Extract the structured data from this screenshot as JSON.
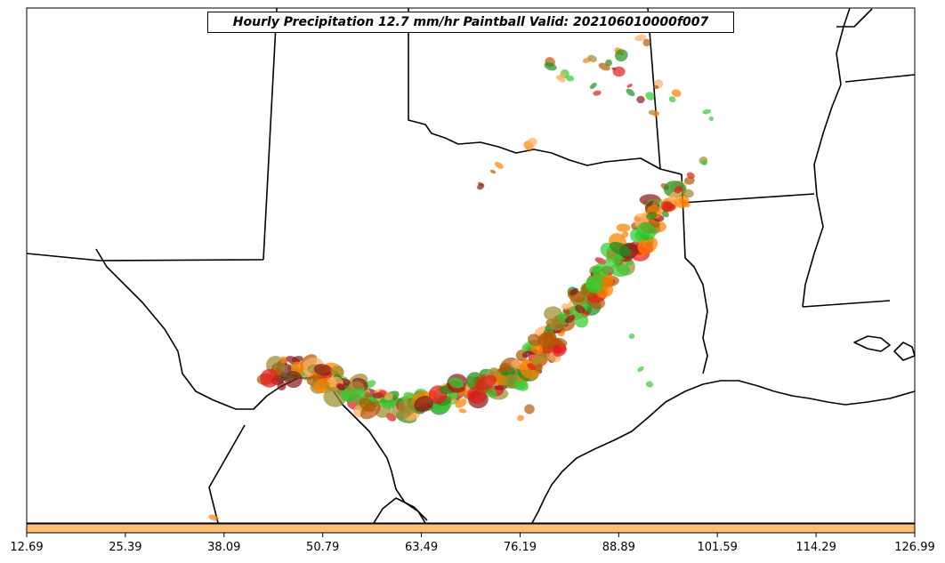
{
  "title": "Hourly Precipitation 12.7 mm/hr Paintball Valid: 202106010000f007",
  "colorbar": {
    "fill_color": "#fdbf6f",
    "ticks": [
      "12.69",
      "25.39",
      "38.09",
      "50.79",
      "63.49",
      "76.19",
      "88.89",
      "101.59",
      "114.29",
      "126.99"
    ]
  },
  "palette": [
    "#33cc33",
    "#1f8f1f",
    "#e31a1c",
    "#8b1a1a",
    "#ff7f00",
    "#fdae61",
    "#9c8e2e",
    "#b35806"
  ],
  "map": {
    "boundaries": "state-lines-and-coastline"
  }
}
